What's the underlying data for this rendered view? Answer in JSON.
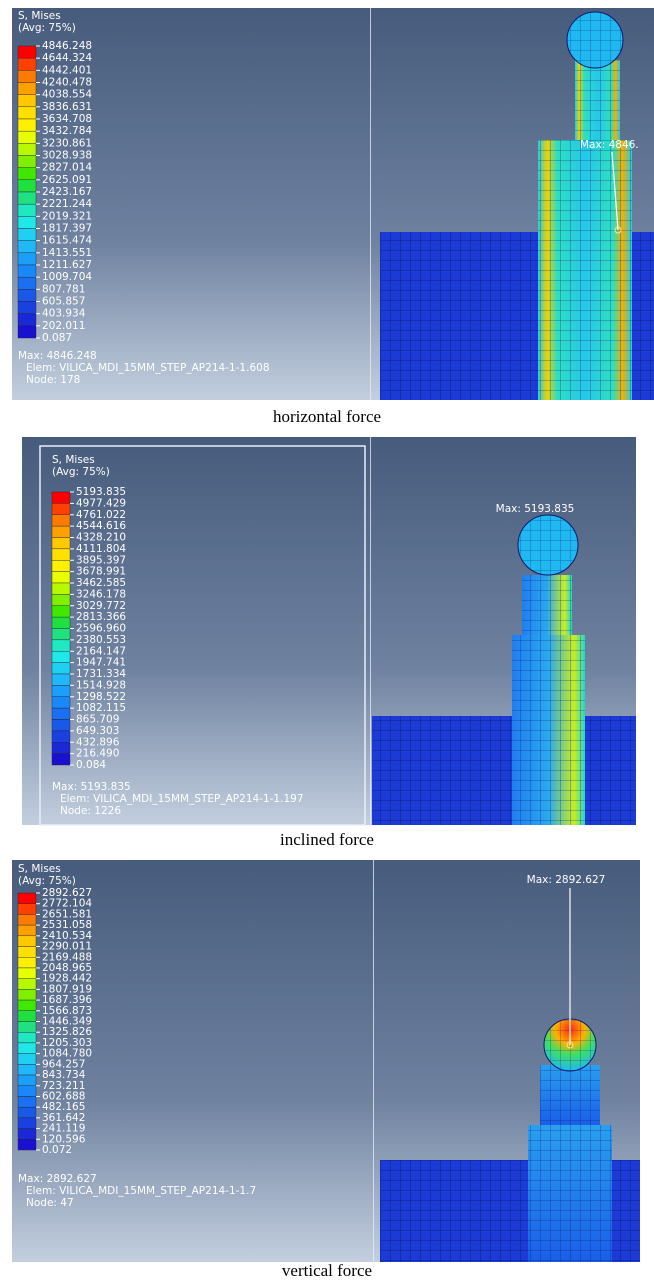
{
  "panels": [
    {
      "legend_title": "S, Mises",
      "legend_subtitle": "(Avg: 75%)",
      "legend_values": [
        "4846.248",
        "4644.324",
        "4442.401",
        "4240.478",
        "4038.554",
        "3836.631",
        "3634.708",
        "3432.784",
        "3230.861",
        "3028.938",
        "2827.014",
        "2625.091",
        "2423.167",
        "2221.244",
        "2019.321",
        "1817.397",
        "1615.474",
        "1413.551",
        "1211.627",
        "1009.704",
        "807.781",
        "605.857",
        "403.934",
        "202.011",
        "0.087"
      ],
      "max_line": "Max: 4846.248",
      "elem_line": "Elem: VILICA_MDI_15MM_STEP_AP214-1-1.608",
      "node_line": "Node: 178",
      "max_annotation": "Max: 4846.",
      "caption": "horizontal force"
    },
    {
      "legend_title": "S, Mises",
      "legend_subtitle": "(Avg: 75%)",
      "legend_values": [
        "5193.835",
        "4977.429",
        "4761.022",
        "4544.616",
        "4328.210",
        "4111.804",
        "3895.397",
        "3678.991",
        "3462.585",
        "3246.178",
        "3029.772",
        "2813.366",
        "2596.960",
        "2380.553",
        "2164.147",
        "1947.741",
        "1731.334",
        "1514.928",
        "1298.522",
        "1082.115",
        "865.709",
        "649.303",
        "432.896",
        "216.490",
        "0.084"
      ],
      "max_line": "Max: 5193.835",
      "elem_line": "Elem: VILICA_MDI_15MM_STEP_AP214-1-1.197",
      "node_line": "Node: 1226",
      "max_annotation": "Max: 5193.835",
      "caption": "inclined force"
    },
    {
      "legend_title": "S, Mises",
      "legend_subtitle": "(Avg: 75%)",
      "legend_values": [
        "2892.627",
        "2772.104",
        "2651.581",
        "2531.058",
        "2410.534",
        "2290.011",
        "2169.488",
        "2048.965",
        "1928.442",
        "1807.919",
        "1687.396",
        "1566.873",
        "1446.349",
        "1325.826",
        "1205.303",
        "1084.780",
        "964.257",
        "843.734",
        "723.211",
        "602.688",
        "482.165",
        "361.642",
        "241.119",
        "120.596",
        "0.072"
      ],
      "max_line": "Max: 2892.627",
      "elem_line": "Elem: VILICA_MDI_15MM_STEP_AP214-1-1.7",
      "node_line": "Node: 47",
      "max_annotation": "Max: 2892.627",
      "caption": "vertical force"
    }
  ]
}
